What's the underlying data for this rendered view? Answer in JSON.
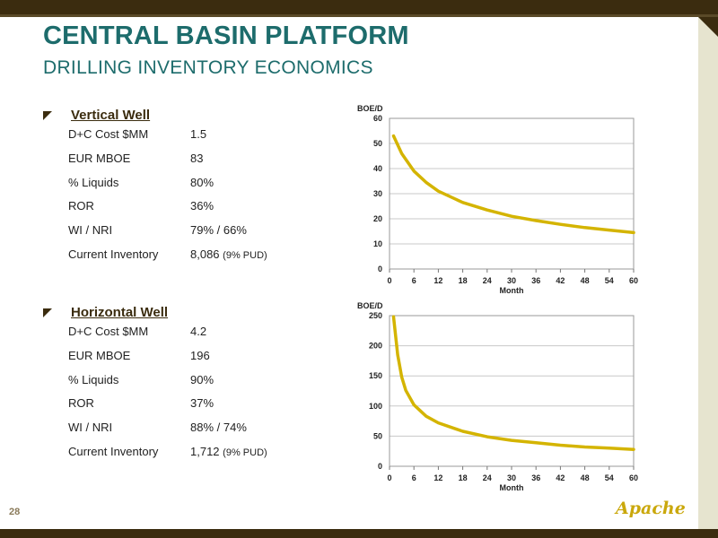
{
  "title": "CENTRAL BASIN PLATFORM",
  "subtitle": "DRILLING INVENTORY ECONOMICS",
  "page_number": "28",
  "logo_text": "Apache",
  "colors": {
    "title": "#1d6c6c",
    "curve": "#d4b400",
    "frame": "#3b2c0f",
    "grid": "#c8c8c8"
  },
  "vertical": {
    "heading": "Vertical Well",
    "rows": [
      {
        "label": "D+C Cost $MM",
        "value": "1.5",
        "note": ""
      },
      {
        "label": "EUR MBOE",
        "value": "83",
        "note": ""
      },
      {
        "label": "% Liquids",
        "value": "80%",
        "note": ""
      },
      {
        "label": "ROR",
        "value": "36%",
        "note": ""
      },
      {
        "label": "WI / NRI",
        "value": "79% / 66%",
        "note": ""
      },
      {
        "label": "Current Inventory",
        "value": "8,086",
        "note": "(9% PUD)"
      }
    ]
  },
  "horizontal": {
    "heading": "Horizontal Well",
    "rows": [
      {
        "label": "D+C Cost $MM",
        "value": "4.2",
        "note": ""
      },
      {
        "label": "EUR MBOE",
        "value": "196",
        "note": ""
      },
      {
        "label": "% Liquids",
        "value": "90%",
        "note": ""
      },
      {
        "label": "ROR",
        "value": "37%",
        "note": ""
      },
      {
        "label": "WI / NRI",
        "value": "88% / 74%",
        "note": ""
      },
      {
        "label": "Current Inventory",
        "value": "1,712",
        "note": "(9% PUD)"
      }
    ]
  },
  "chart_data": [
    {
      "type": "line",
      "ylabel": "BOE/D",
      "xlabel": "Month",
      "xlim": [
        0,
        60
      ],
      "ylim": [
        0,
        60
      ],
      "xticks": [
        0,
        6,
        12,
        18,
        24,
        30,
        36,
        42,
        48,
        54,
        60
      ],
      "yticks": [
        0,
        10,
        20,
        30,
        40,
        50,
        60
      ],
      "grid": true,
      "series": [
        {
          "x": [
            1,
            3,
            6,
            9,
            12,
            18,
            24,
            30,
            36,
            42,
            48,
            54,
            60
          ],
          "y": [
            53,
            46,
            39,
            34.5,
            31,
            26.5,
            23.5,
            21,
            19.3,
            17.8,
            16.5,
            15.5,
            14.5
          ]
        }
      ]
    },
    {
      "type": "line",
      "ylabel": "BOE/D",
      "xlabel": "Month",
      "xlim": [
        0,
        60
      ],
      "ylim": [
        0,
        250
      ],
      "xticks": [
        0,
        6,
        12,
        18,
        24,
        30,
        36,
        42,
        48,
        54,
        60
      ],
      "yticks": [
        0,
        50,
        100,
        150,
        200,
        250
      ],
      "grid": true,
      "series": [
        {
          "x": [
            1,
            2,
            3,
            4,
            6,
            9,
            12,
            18,
            24,
            30,
            36,
            42,
            48,
            54,
            60
          ],
          "y": [
            248,
            185,
            148,
            126,
            102,
            83,
            72,
            58,
            49,
            43,
            39,
            35,
            32,
            30,
            28
          ]
        }
      ]
    }
  ]
}
